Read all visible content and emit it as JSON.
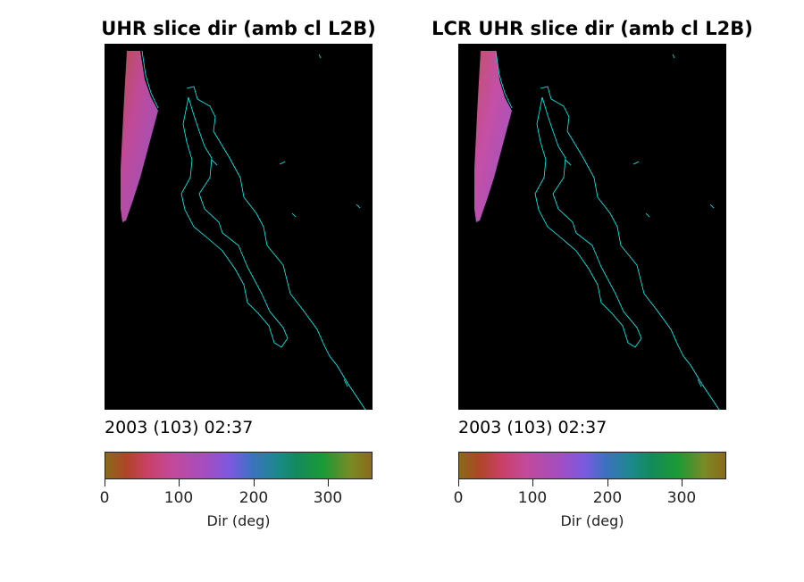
{
  "panels": [
    {
      "title": "UHR slice dir (amb cl L2B)",
      "timestamp": "2003 (103) 02:37",
      "colorbar": {
        "ticks": [
          "0",
          "100",
          "200",
          "300"
        ],
        "label": "Dir (deg)",
        "range": [
          0,
          360
        ]
      }
    },
    {
      "title": "LCR UHR slice dir (amb cl L2B)",
      "timestamp": "2003 (103) 02:37",
      "colorbar": {
        "ticks": [
          "0",
          "100",
          "200",
          "300"
        ],
        "label": "Dir (deg)",
        "range": [
          0,
          360
        ]
      }
    }
  ],
  "colors": {
    "map_background": "#000000",
    "coastline": "#00ffff",
    "swath": "#b24ea8"
  }
}
